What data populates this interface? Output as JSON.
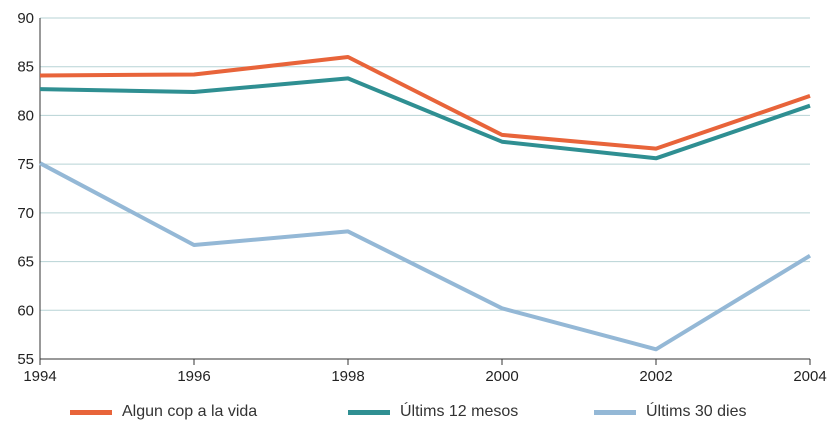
{
  "chart_data": {
    "type": "line",
    "title": "",
    "xlabel": "",
    "ylabel": "",
    "x": [
      "1994",
      "1996",
      "1998",
      "2000",
      "2002",
      "2004"
    ],
    "ylim": [
      55,
      90
    ],
    "yticks": [
      55,
      60,
      65,
      70,
      75,
      80,
      85,
      90
    ],
    "grid": "horizontal",
    "legend_position": "bottom",
    "series": [
      {
        "name": "Algun cop a la vida",
        "color": "#e8643a",
        "values": [
          84.1,
          84.2,
          86.0,
          78.0,
          76.6,
          82.0
        ]
      },
      {
        "name": "Últims 12 mesos",
        "color": "#2f8f92",
        "values": [
          82.7,
          82.4,
          83.8,
          77.3,
          75.6,
          81.0
        ]
      },
      {
        "name": "Últims 30 dies",
        "color": "#94b8d6",
        "values": [
          75.1,
          66.7,
          68.1,
          60.2,
          56.0,
          65.6
        ]
      }
    ]
  }
}
